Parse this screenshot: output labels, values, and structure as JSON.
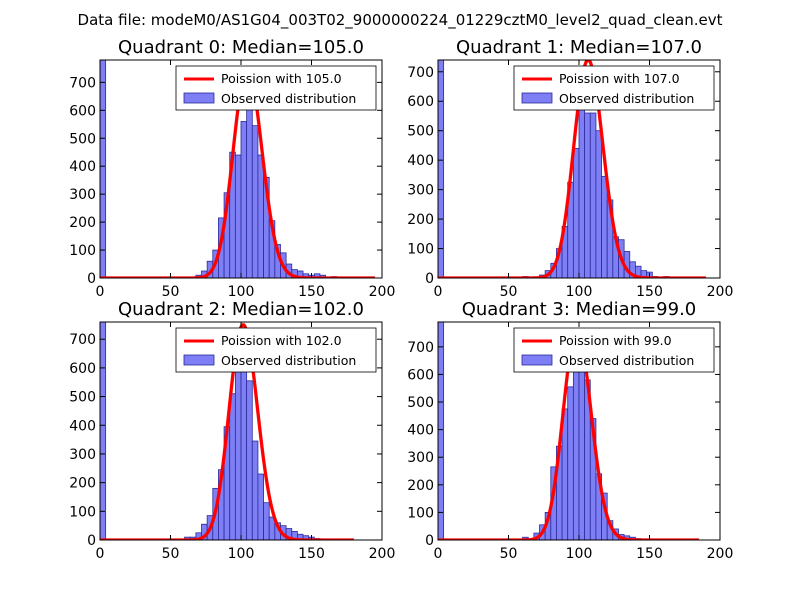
{
  "suptitle": "Data file: modeM0/AS1G04_003T02_9000000224_01229cztM0_level2_quad_clean.evt",
  "colors": {
    "hist_fill": "#7f7ff5",
    "hist_edge": "#2a2a9a",
    "poisson_line": "#ff0000",
    "poisson_alpha": 0.55,
    "frame": "#000000"
  },
  "chart_data": [
    {
      "type": "bar",
      "title": "Quadrant 0: Median=105.0",
      "median": 105.0,
      "xlim": [
        0,
        200
      ],
      "ylim": [
        0,
        780
      ],
      "xticks": [
        0,
        50,
        100,
        150,
        200
      ],
      "yticks": [
        0,
        100,
        200,
        300,
        400,
        500,
        600,
        700
      ],
      "legend": {
        "placement": "top-right",
        "entries": [
          "Poission with 105.0",
          "Observed distribution"
        ]
      },
      "histogram": {
        "bin_width": 4,
        "bins": [
          {
            "x0": 0,
            "count": 780
          },
          {
            "x0": 68,
            "count": 10
          },
          {
            "x0": 72,
            "count": 25
          },
          {
            "x0": 76,
            "count": 60
          },
          {
            "x0": 80,
            "count": 100
          },
          {
            "x0": 84,
            "count": 215
          },
          {
            "x0": 88,
            "count": 305
          },
          {
            "x0": 92,
            "count": 450
          },
          {
            "x0": 96,
            "count": 440
          },
          {
            "x0": 100,
            "count": 560
          },
          {
            "x0": 104,
            "count": 610
          },
          {
            "x0": 108,
            "count": 545
          },
          {
            "x0": 112,
            "count": 440
          },
          {
            "x0": 116,
            "count": 360
          },
          {
            "x0": 120,
            "count": 205
          },
          {
            "x0": 124,
            "count": 120
          },
          {
            "x0": 128,
            "count": 90
          },
          {
            "x0": 132,
            "count": 50
          },
          {
            "x0": 136,
            "count": 30
          },
          {
            "x0": 140,
            "count": 25
          },
          {
            "x0": 144,
            "count": 15
          },
          {
            "x0": 148,
            "count": 10
          },
          {
            "x0": 152,
            "count": 15
          },
          {
            "x0": 156,
            "count": 10
          },
          {
            "x0": 164,
            "count": 5
          }
        ]
      },
      "poisson": {
        "lambda": 105.0,
        "x_range": [
          0,
          195
        ],
        "peak": 750
      }
    },
    {
      "type": "bar",
      "title": "Quadrant 1: Median=107.0",
      "median": 107.0,
      "xlim": [
        0,
        200
      ],
      "ylim": [
        0,
        740
      ],
      "xticks": [
        0,
        50,
        100,
        150,
        200
      ],
      "yticks": [
        0,
        100,
        200,
        300,
        400,
        500,
        600,
        700
      ],
      "legend": {
        "placement": "top-right",
        "entries": [
          "Poission with 107.0",
          "Observed distribution"
        ]
      },
      "histogram": {
        "bin_width": 4,
        "bins": [
          {
            "x0": 0,
            "count": 740
          },
          {
            "x0": 60,
            "count": 5
          },
          {
            "x0": 72,
            "count": 10
          },
          {
            "x0": 76,
            "count": 25
          },
          {
            "x0": 80,
            "count": 50
          },
          {
            "x0": 84,
            "count": 100
          },
          {
            "x0": 88,
            "count": 175
          },
          {
            "x0": 92,
            "count": 325
          },
          {
            "x0": 96,
            "count": 440
          },
          {
            "x0": 100,
            "count": 605
          },
          {
            "x0": 104,
            "count": 560
          },
          {
            "x0": 108,
            "count": 560
          },
          {
            "x0": 112,
            "count": 500
          },
          {
            "x0": 116,
            "count": 345
          },
          {
            "x0": 120,
            "count": 265
          },
          {
            "x0": 124,
            "count": 140
          },
          {
            "x0": 128,
            "count": 130
          },
          {
            "x0": 132,
            "count": 90
          },
          {
            "x0": 136,
            "count": 55
          },
          {
            "x0": 140,
            "count": 40
          },
          {
            "x0": 144,
            "count": 25
          },
          {
            "x0": 148,
            "count": 20
          },
          {
            "x0": 152,
            "count": 5
          },
          {
            "x0": 160,
            "count": 5
          }
        ]
      },
      "poisson": {
        "lambda": 107.0,
        "x_range": [
          0,
          190
        ],
        "peak": 740
      }
    },
    {
      "type": "bar",
      "title": "Quadrant 2: Median=102.0",
      "median": 102.0,
      "xlim": [
        0,
        200
      ],
      "ylim": [
        0,
        760
      ],
      "xticks": [
        0,
        50,
        100,
        150,
        200
      ],
      "yticks": [
        0,
        100,
        200,
        300,
        400,
        500,
        600,
        700
      ],
      "legend": {
        "placement": "top-right",
        "entries": [
          "Poission with 102.0",
          "Observed distribution"
        ]
      },
      "histogram": {
        "bin_width": 4,
        "bins": [
          {
            "x0": 0,
            "count": 760
          },
          {
            "x0": 60,
            "count": 10
          },
          {
            "x0": 64,
            "count": 10
          },
          {
            "x0": 68,
            "count": 25
          },
          {
            "x0": 72,
            "count": 55
          },
          {
            "x0": 76,
            "count": 85
          },
          {
            "x0": 80,
            "count": 180
          },
          {
            "x0": 84,
            "count": 245
          },
          {
            "x0": 88,
            "count": 395
          },
          {
            "x0": 92,
            "count": 510
          },
          {
            "x0": 96,
            "count": 610
          },
          {
            "x0": 100,
            "count": 640
          },
          {
            "x0": 104,
            "count": 555
          },
          {
            "x0": 108,
            "count": 345
          },
          {
            "x0": 112,
            "count": 230
          },
          {
            "x0": 116,
            "count": 130
          },
          {
            "x0": 120,
            "count": 80
          },
          {
            "x0": 124,
            "count": 60
          },
          {
            "x0": 128,
            "count": 50
          },
          {
            "x0": 132,
            "count": 40
          },
          {
            "x0": 136,
            "count": 30
          },
          {
            "x0": 140,
            "count": 20
          },
          {
            "x0": 144,
            "count": 15
          },
          {
            "x0": 148,
            "count": 10
          },
          {
            "x0": 152,
            "count": 5
          }
        ]
      },
      "poisson": {
        "lambda": 102.0,
        "x_range": [
          0,
          180
        ],
        "peak": 750
      }
    },
    {
      "type": "bar",
      "title": "Quadrant 3: Median=99.0",
      "median": 99.0,
      "xlim": [
        0,
        200
      ],
      "ylim": [
        0,
        790
      ],
      "xticks": [
        0,
        50,
        100,
        150,
        200
      ],
      "yticks": [
        0,
        100,
        200,
        300,
        400,
        500,
        600,
        700
      ],
      "legend": {
        "placement": "top-right",
        "entries": [
          "Poission with 99.0",
          "Observed distribution"
        ]
      },
      "histogram": {
        "bin_width": 4,
        "bins": [
          {
            "x0": 0,
            "count": 790
          },
          {
            "x0": 60,
            "count": 10
          },
          {
            "x0": 68,
            "count": 25
          },
          {
            "x0": 72,
            "count": 55
          },
          {
            "x0": 76,
            "count": 100
          },
          {
            "x0": 80,
            "count": 265
          },
          {
            "x0": 84,
            "count": 340
          },
          {
            "x0": 88,
            "count": 475
          },
          {
            "x0": 92,
            "count": 555
          },
          {
            "x0": 96,
            "count": 760
          },
          {
            "x0": 100,
            "count": 740
          },
          {
            "x0": 104,
            "count": 580
          },
          {
            "x0": 108,
            "count": 440
          },
          {
            "x0": 112,
            "count": 240
          },
          {
            "x0": 116,
            "count": 170
          },
          {
            "x0": 120,
            "count": 70
          },
          {
            "x0": 124,
            "count": 40
          },
          {
            "x0": 128,
            "count": 20
          },
          {
            "x0": 132,
            "count": 15
          },
          {
            "x0": 136,
            "count": 10
          },
          {
            "x0": 140,
            "count": 5
          }
        ]
      },
      "poisson": {
        "lambda": 99.0,
        "x_range": [
          0,
          185
        ],
        "peak": 760
      }
    }
  ]
}
